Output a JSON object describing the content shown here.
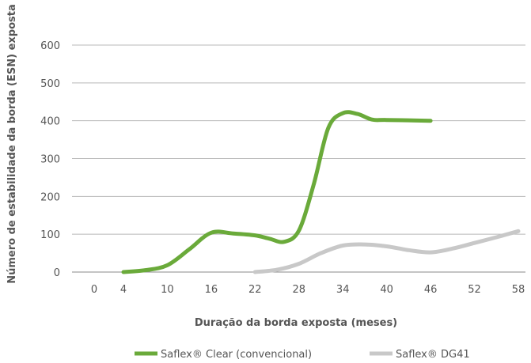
{
  "chart_data": {
    "type": "line",
    "xlabel": "Duração da borda exposta (meses)",
    "ylabel": "Número de estabilidade da borda (ESN) exposta",
    "x_ticks": [
      "0",
      "4",
      "10",
      "16",
      "22",
      "28",
      "34",
      "40",
      "46",
      "52",
      "58"
    ],
    "y_ticks": [
      "0",
      "100",
      "200",
      "300",
      "400",
      "500",
      "600"
    ],
    "xlim": [
      0,
      58
    ],
    "ylim": [
      0,
      600
    ],
    "grid": "horizontal",
    "legend_position": "bottom",
    "series": [
      {
        "name": "Saflex® Clear (convencional)",
        "color": "#6aaa3a",
        "points": [
          [
            4,
            0
          ],
          [
            7,
            5
          ],
          [
            10,
            18
          ],
          [
            13,
            60
          ],
          [
            16,
            104
          ],
          [
            19,
            102
          ],
          [
            22,
            97
          ],
          [
            24,
            88
          ],
          [
            26,
            80
          ],
          [
            28,
            110
          ],
          [
            30,
            230
          ],
          [
            32,
            380
          ],
          [
            34,
            420
          ],
          [
            36,
            418
          ],
          [
            38,
            403
          ],
          [
            40,
            402
          ],
          [
            46,
            400
          ]
        ]
      },
      {
        "name": "Saflex® DG41",
        "color": "#c8c8c8",
        "points": [
          [
            22,
            0
          ],
          [
            25,
            6
          ],
          [
            28,
            22
          ],
          [
            31,
            50
          ],
          [
            34,
            70
          ],
          [
            37,
            73
          ],
          [
            40,
            68
          ],
          [
            43,
            58
          ],
          [
            46,
            52
          ],
          [
            49,
            62
          ],
          [
            52,
            77
          ],
          [
            55,
            92
          ],
          [
            58,
            108
          ]
        ]
      }
    ]
  }
}
